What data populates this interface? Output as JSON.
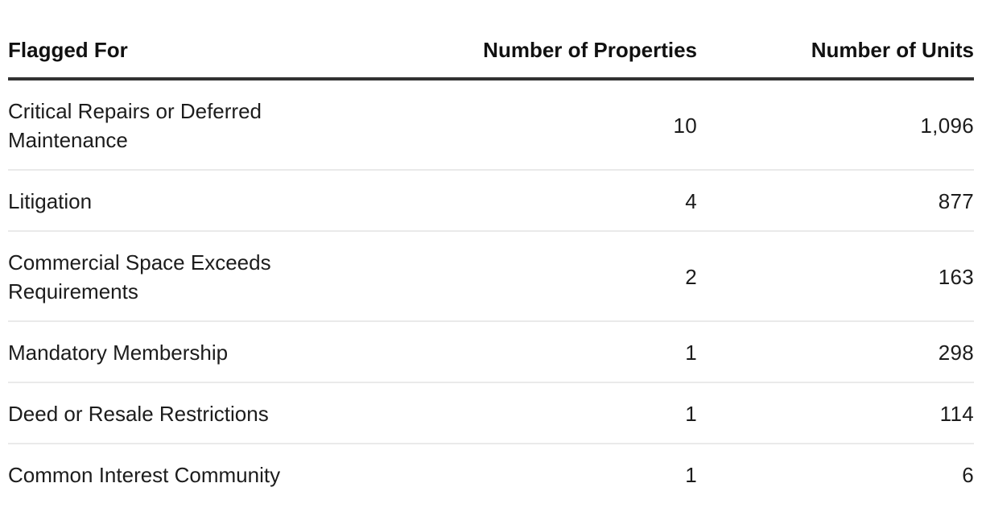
{
  "page": {
    "background": "#ffffff"
  },
  "table": {
    "columns": [
      {
        "id": "flagged_for",
        "label": "Flagged For",
        "align": "left"
      },
      {
        "id": "properties",
        "label": "Number of Properties",
        "align": "right"
      },
      {
        "id": "units",
        "label": "Number of Units",
        "align": "right"
      }
    ],
    "rows": [
      {
        "flagged_for": "Critical Repairs or Deferred Maintenance",
        "properties": "10",
        "units": "1,096"
      },
      {
        "flagged_for": "Litigation",
        "properties": "4",
        "units": "877"
      },
      {
        "flagged_for": "Commercial Space Exceeds Requirements",
        "properties": "2",
        "units": "163"
      },
      {
        "flagged_for": "Mandatory Membership",
        "properties": "1",
        "units": "298"
      },
      {
        "flagged_for": "Deed or Resale Restrictions",
        "properties": "1",
        "units": "114"
      },
      {
        "flagged_for": "Common Interest Community",
        "properties": "1",
        "units": "6"
      }
    ]
  },
  "chart_data": {
    "type": "table",
    "columns": [
      "Flagged For",
      "Number of Properties",
      "Number of Units"
    ],
    "rows": [
      [
        "Critical Repairs or Deferred Maintenance",
        10,
        1096
      ],
      [
        "Litigation",
        4,
        877
      ],
      [
        "Commercial Space Exceeds Requirements",
        2,
        163
      ],
      [
        "Mandatory Membership",
        1,
        298
      ],
      [
        "Deed or Resale Restrictions",
        1,
        114
      ],
      [
        "Common Interest Community",
        1,
        6
      ]
    ],
    "totals_shown": false,
    "layout": {
      "header_rule": true,
      "row_dividers": true,
      "numeric_columns_right_aligned": true
    }
  },
  "colors": {
    "background": "#ffffff",
    "header_text": "#111111",
    "body_text": "#1c1c1c",
    "header_rule": "#323232",
    "row_divider": "#eaeaea"
  }
}
